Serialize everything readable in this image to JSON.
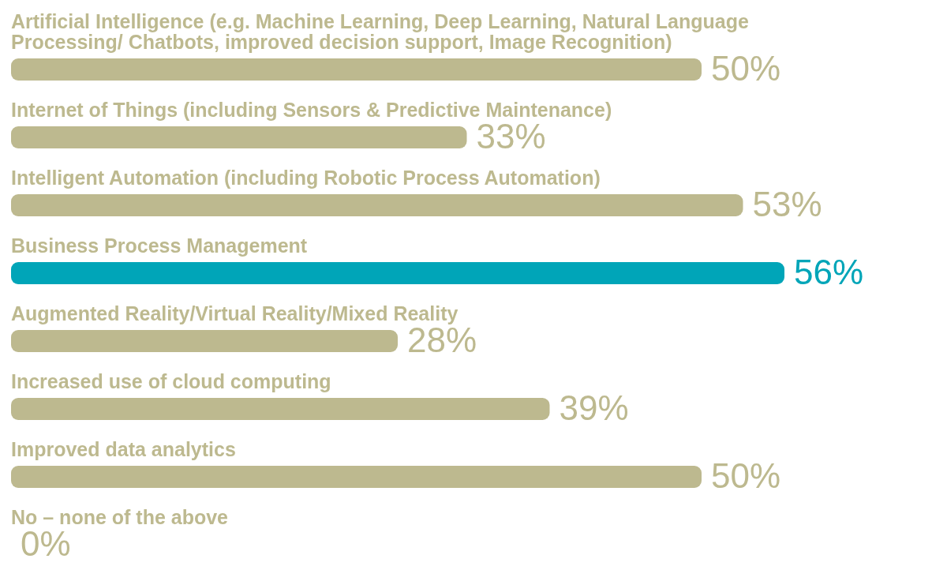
{
  "chart_data": {
    "type": "bar",
    "orientation": "horizontal",
    "categories": [
      "Artificial Intelligence (e.g. Machine Learning, Deep Learning, Natural Language Processing/ Chatbots, improved decision support, Image Recognition)",
      "Internet of Things (including Sensors & Predictive Maintenance)",
      "Intelligent Automation (including Robotic Process Automation)",
      "Business Process Management",
      "Augmented Reality/Virtual Reality/Mixed Reality",
      "Increased use of cloud computing",
      "Improved data analytics",
      "No – none of the above"
    ],
    "values": [
      50,
      33,
      53,
      56,
      28,
      39,
      50,
      0
    ],
    "colors": [
      "#bdb98f",
      "#bdb98f",
      "#bdb98f",
      "#00a5b8",
      "#bdb98f",
      "#bdb98f",
      "#bdb98f",
      "#bdb98f"
    ],
    "value_labels": [
      "50%",
      "33%",
      "53%",
      "56%",
      "28%",
      "39%",
      "50%",
      "0%"
    ]
  }
}
